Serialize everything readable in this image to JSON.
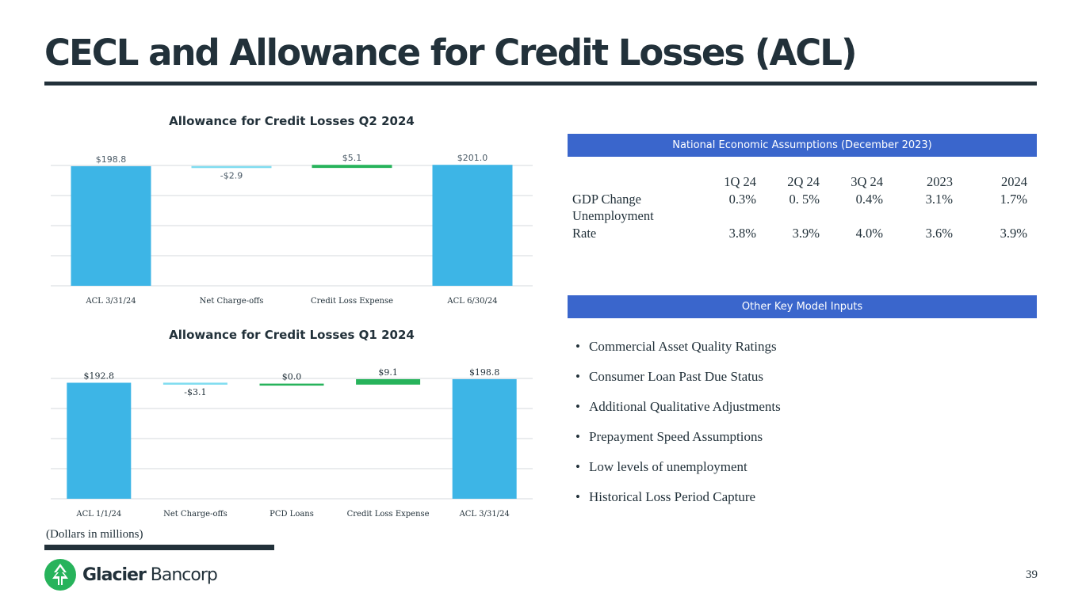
{
  "page": {
    "title": "CECL and Allowance for Credit Losses (ACL)",
    "footnote": "(Dollars in millions)",
    "page_number": "39"
  },
  "logo": {
    "word_strong": "Glacier",
    "word_light": " Bancorp",
    "icon": "glacier-trees-icon"
  },
  "colors": {
    "title": "#22313a",
    "bar_total": "#3db5e6",
    "bar_decrease": "#7fdcf0",
    "bar_increase": "#27b35b",
    "header_bg": "#3a66cc",
    "gridline": "#e3e6e8"
  },
  "chart_data": [
    {
      "type": "bar",
      "subtype": "waterfall",
      "title": "Allowance for Credit Losses Q2 2024",
      "categories": [
        "ACL 3/31/24",
        "Net Charge-offs",
        "Credit Loss Expense",
        "ACL 6/30/24"
      ],
      "values": [
        198.8,
        -2.9,
        5.1,
        201.0
      ],
      "kinds": [
        "total",
        "decrease",
        "increase",
        "total"
      ],
      "data_labels": [
        "$198.8",
        "-$2.9",
        "$5.1",
        "$201.0"
      ],
      "ylim": [
        0,
        200
      ],
      "grid": true
    },
    {
      "type": "bar",
      "subtype": "waterfall",
      "title": "Allowance for Credit Losses Q1 2024",
      "categories": [
        "ACL 1/1/24",
        "Net Charge-offs",
        "PCD Loans",
        "Credit Loss Expense",
        "ACL 3/31/24"
      ],
      "values": [
        192.8,
        -3.1,
        0.0,
        9.1,
        198.8
      ],
      "kinds": [
        "total",
        "decrease",
        "increase",
        "increase",
        "total"
      ],
      "data_labels": [
        "$192.8",
        "-$3.1",
        "$0.0",
        "$9.1",
        "$198.8"
      ],
      "ylim": [
        0,
        200
      ],
      "grid": true
    }
  ],
  "economic": {
    "header": "National Economic Assumptions (December 2023)",
    "columns": [
      "1Q 24",
      "2Q 24",
      "3Q 24",
      "2023",
      "2024"
    ],
    "rows": [
      {
        "label": "GDP Change",
        "values": [
          "0.3%",
          "0. 5%",
          "0.4%",
          "3.1%",
          "1.7%"
        ]
      },
      {
        "label_line1": "Unemployment",
        "label_line2": "Rate",
        "values": [
          "3.8%",
          "3.9%",
          "4.0%",
          "3.6%",
          "3.9%"
        ]
      }
    ]
  },
  "inputs": {
    "header": "Other Key Model Inputs",
    "bullet": "•",
    "items": [
      "Commercial Asset Quality Ratings",
      "Consumer Loan Past Due Status",
      "Additional Qualitative Adjustments",
      "Prepayment Speed Assumptions",
      "Low levels of unemployment",
      "Historical Loss Period Capture"
    ]
  }
}
